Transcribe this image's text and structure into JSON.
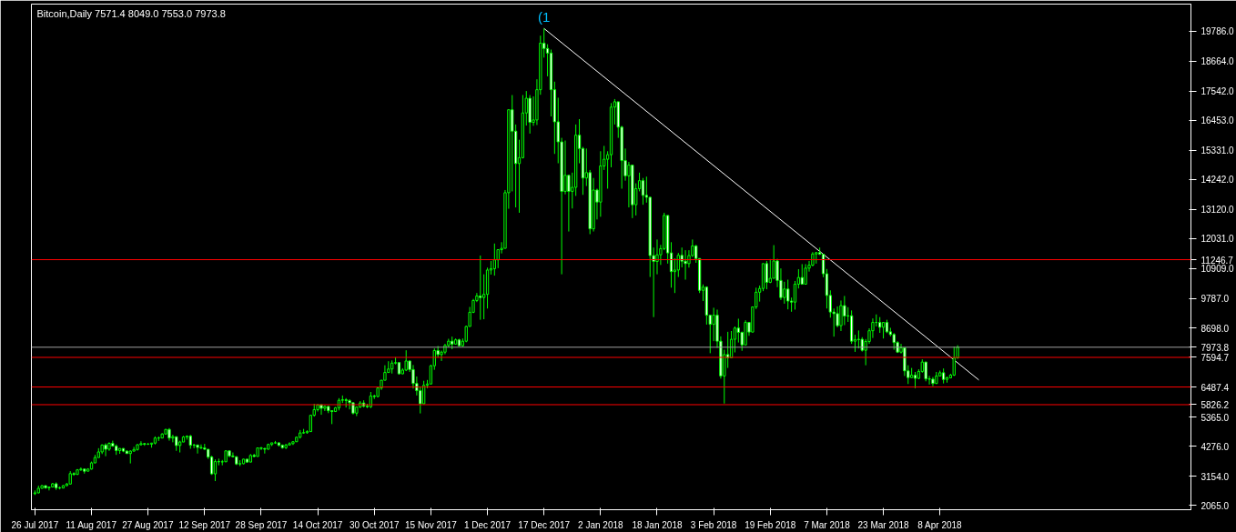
{
  "chart_data": {
    "type": "candlestick",
    "title": "Bitcoin,Daily  7571.4 8049.0 7553.0 7973.8",
    "color": "#00ff00",
    "x": [
      "2017-07-26",
      "2017-07-27",
      "2017-07-28",
      "2017-07-29",
      "2017-07-30",
      "2017-07-31",
      "2017-08-01",
      "2017-08-02",
      "2017-08-03",
      "2017-08-04",
      "2017-08-05",
      "2017-08-06",
      "2017-08-07",
      "2017-08-08",
      "2017-08-09",
      "2017-08-10",
      "2017-08-11",
      "2017-08-12",
      "2017-08-13",
      "2017-08-14",
      "2017-08-15",
      "2017-08-16",
      "2017-08-17",
      "2017-08-18",
      "2017-08-19",
      "2017-08-20",
      "2017-08-21",
      "2017-08-22",
      "2017-08-23",
      "2017-08-24",
      "2017-08-25",
      "2017-08-26",
      "2017-08-27",
      "2017-08-28",
      "2017-08-29",
      "2017-08-30",
      "2017-08-31",
      "2017-09-01",
      "2017-09-02",
      "2017-09-03",
      "2017-09-04",
      "2017-09-05",
      "2017-09-06",
      "2017-09-07",
      "2017-09-08",
      "2017-09-09",
      "2017-09-10",
      "2017-09-11",
      "2017-09-12",
      "2017-09-13",
      "2017-09-14",
      "2017-09-15",
      "2017-09-16",
      "2017-09-17",
      "2017-09-18",
      "2017-09-19",
      "2017-09-20",
      "2017-09-21",
      "2017-09-22",
      "2017-09-23",
      "2017-09-24",
      "2017-09-25",
      "2017-09-26",
      "2017-09-27",
      "2017-09-28",
      "2017-09-29",
      "2017-09-30",
      "2017-10-01",
      "2017-10-02",
      "2017-10-03",
      "2017-10-04",
      "2017-10-05",
      "2017-10-06",
      "2017-10-07",
      "2017-10-08",
      "2017-10-09",
      "2017-10-10",
      "2017-10-11",
      "2017-10-12",
      "2017-10-13",
      "2017-10-14",
      "2017-10-15",
      "2017-10-16",
      "2017-10-17",
      "2017-10-18",
      "2017-10-19",
      "2017-10-20",
      "2017-10-21",
      "2017-10-22",
      "2017-10-23",
      "2017-10-24",
      "2017-10-25",
      "2017-10-26",
      "2017-10-27",
      "2017-10-28",
      "2017-10-29",
      "2017-10-30",
      "2017-10-31",
      "2017-11-01",
      "2017-11-02",
      "2017-11-03",
      "2017-11-04",
      "2017-11-05",
      "2017-11-06",
      "2017-11-07",
      "2017-11-08",
      "2017-11-09",
      "2017-11-10",
      "2017-11-11",
      "2017-11-12",
      "2017-11-13",
      "2017-11-14",
      "2017-11-15",
      "2017-11-16",
      "2017-11-17",
      "2017-11-18",
      "2017-11-19",
      "2017-11-20",
      "2017-11-21",
      "2017-11-22",
      "2017-11-23",
      "2017-11-24",
      "2017-11-25",
      "2017-11-26",
      "2017-11-27",
      "2017-11-28",
      "2017-11-29",
      "2017-11-30",
      "2017-12-01",
      "2017-12-02",
      "2017-12-03",
      "2017-12-04",
      "2017-12-05",
      "2017-12-06",
      "2017-12-07",
      "2017-12-08",
      "2017-12-09",
      "2017-12-10",
      "2017-12-11",
      "2017-12-12",
      "2017-12-13",
      "2017-12-14",
      "2017-12-15",
      "2017-12-16",
      "2017-12-17",
      "2017-12-18",
      "2017-12-19",
      "2017-12-20",
      "2017-12-21",
      "2017-12-22",
      "2017-12-23",
      "2017-12-24",
      "2017-12-25",
      "2017-12-26",
      "2017-12-27",
      "2017-12-28",
      "2017-12-29",
      "2017-12-30",
      "2017-12-31",
      "2018-01-01",
      "2018-01-02",
      "2018-01-03",
      "2018-01-04",
      "2018-01-05",
      "2018-01-06",
      "2018-01-07",
      "2018-01-08",
      "2018-01-09",
      "2018-01-10",
      "2018-01-11",
      "2018-01-12",
      "2018-01-13",
      "2018-01-14",
      "2018-01-15",
      "2018-01-16",
      "2018-01-17",
      "2018-01-18",
      "2018-01-19",
      "2018-01-20",
      "2018-01-21",
      "2018-01-22",
      "2018-01-23",
      "2018-01-24",
      "2018-01-25",
      "2018-01-26",
      "2018-01-27",
      "2018-01-28",
      "2018-01-29",
      "2018-01-30",
      "2018-01-31",
      "2018-02-01",
      "2018-02-02",
      "2018-02-03",
      "2018-02-04",
      "2018-02-05",
      "2018-02-06",
      "2018-02-07",
      "2018-02-08",
      "2018-02-09",
      "2018-02-10",
      "2018-02-11",
      "2018-02-12",
      "2018-02-13",
      "2018-02-14",
      "2018-02-15",
      "2018-02-16",
      "2018-02-17",
      "2018-02-18",
      "2018-02-19",
      "2018-02-20",
      "2018-02-21",
      "2018-02-22",
      "2018-02-23",
      "2018-02-24",
      "2018-02-25",
      "2018-02-26",
      "2018-02-27",
      "2018-02-28",
      "2018-03-01",
      "2018-03-02",
      "2018-03-03",
      "2018-03-04",
      "2018-03-05",
      "2018-03-06",
      "2018-03-07",
      "2018-03-08",
      "2018-03-09",
      "2018-03-10",
      "2018-03-11",
      "2018-03-12",
      "2018-03-13",
      "2018-03-14",
      "2018-03-15",
      "2018-03-16",
      "2018-03-17",
      "2018-03-18",
      "2018-03-19",
      "2018-03-20",
      "2018-03-21",
      "2018-03-22",
      "2018-03-23",
      "2018-03-24",
      "2018-03-25",
      "2018-03-26",
      "2018-03-27",
      "2018-03-28",
      "2018-03-29",
      "2018-03-30",
      "2018-03-31",
      "2018-04-01",
      "2018-04-02",
      "2018-04-03",
      "2018-04-04",
      "2018-04-05",
      "2018-04-06",
      "2018-04-07",
      "2018-04-08",
      "2018-04-09",
      "2018-04-10",
      "2018-04-11",
      "2018-04-12",
      "2018-04-13"
    ],
    "ohlc": [
      [
        2500,
        2620,
        2450,
        2530
      ],
      [
        2530,
        2800,
        2510,
        2700
      ],
      [
        2700,
        2820,
        2690,
        2800
      ],
      [
        2800,
        2810,
        2680,
        2720
      ],
      [
        2720,
        2760,
        2620,
        2750
      ],
      [
        2750,
        2900,
        2740,
        2870
      ],
      [
        2870,
        2920,
        2640,
        2720
      ],
      [
        2720,
        2770,
        2660,
        2710
      ],
      [
        2710,
        2820,
        2700,
        2800
      ],
      [
        2800,
        2900,
        2780,
        2860
      ],
      [
        2860,
        3340,
        2850,
        3250
      ],
      [
        3250,
        3300,
        3170,
        3220
      ],
      [
        3220,
        3420,
        3200,
        3390
      ],
      [
        3390,
        3480,
        3350,
        3420
      ],
      [
        3420,
        3430,
        3250,
        3340
      ],
      [
        3340,
        3450,
        3330,
        3420
      ],
      [
        3420,
        3700,
        3400,
        3650
      ],
      [
        3650,
        3950,
        3640,
        3850
      ],
      [
        3850,
        4200,
        3850,
        4060
      ],
      [
        4060,
        4340,
        3980,
        4320
      ],
      [
        4320,
        4380,
        3900,
        4160
      ],
      [
        4160,
        4420,
        4100,
        4380
      ],
      [
        4380,
        4480,
        4250,
        4280
      ],
      [
        4280,
        4340,
        3950,
        4110
      ],
      [
        4110,
        4200,
        3990,
        4190
      ],
      [
        4190,
        4200,
        4050,
        4090
      ],
      [
        4090,
        4120,
        3990,
        4000
      ],
      [
        4000,
        4120,
        3630,
        4090
      ],
      [
        4090,
        4250,
        4080,
        4150
      ],
      [
        4150,
        4350,
        4110,
        4330
      ],
      [
        4330,
        4460,
        4300,
        4370
      ],
      [
        4370,
        4380,
        4290,
        4350
      ],
      [
        4350,
        4400,
        4320,
        4350
      ],
      [
        4350,
        4400,
        4220,
        4390
      ],
      [
        4390,
        4640,
        4340,
        4580
      ],
      [
        4580,
        4640,
        4470,
        4580
      ],
      [
        4580,
        4760,
        4570,
        4730
      ],
      [
        4730,
        4920,
        4720,
        4900
      ],
      [
        4900,
        4950,
        4480,
        4580
      ],
      [
        4580,
        4700,
        4420,
        4630
      ],
      [
        4630,
        4630,
        4100,
        4300
      ],
      [
        4300,
        4480,
        4040,
        4430
      ],
      [
        4430,
        4660,
        4430,
        4620
      ],
      [
        4620,
        4680,
        4520,
        4650
      ],
      [
        4650,
        4700,
        4180,
        4310
      ],
      [
        4310,
        4360,
        4200,
        4320
      ],
      [
        4320,
        4320,
        4000,
        4230
      ],
      [
        4230,
        4340,
        4160,
        4210
      ],
      [
        4210,
        4360,
        4140,
        4160
      ],
      [
        4160,
        4160,
        3800,
        3870
      ],
      [
        3870,
        3920,
        3200,
        3240
      ],
      [
        3240,
        3780,
        2970,
        3700
      ],
      [
        3700,
        3810,
        3560,
        3690
      ],
      [
        3690,
        3760,
        3560,
        3690
      ],
      [
        3690,
        4120,
        3690,
        4100
      ],
      [
        4100,
        4110,
        3860,
        3910
      ],
      [
        3910,
        4040,
        3880,
        3880
      ],
      [
        3880,
        3900,
        3570,
        3610
      ],
      [
        3610,
        3750,
        3530,
        3620
      ],
      [
        3620,
        3800,
        3600,
        3790
      ],
      [
        3790,
        3790,
        3650,
        3680
      ],
      [
        3680,
        3980,
        3680,
        3930
      ],
      [
        3930,
        3990,
        3860,
        3890
      ],
      [
        3890,
        4220,
        3890,
        4210
      ],
      [
        4210,
        4250,
        4130,
        4190
      ],
      [
        4190,
        4210,
        4000,
        4160
      ],
      [
        4160,
        4370,
        4150,
        4340
      ],
      [
        4340,
        4400,
        4280,
        4400
      ],
      [
        4400,
        4470,
        4360,
        4400
      ],
      [
        4400,
        4420,
        4260,
        4310
      ],
      [
        4310,
        4340,
        4180,
        4220
      ],
      [
        4220,
        4360,
        4170,
        4320
      ],
      [
        4320,
        4420,
        4300,
        4370
      ],
      [
        4370,
        4460,
        4320,
        4440
      ],
      [
        4440,
        4620,
        4440,
        4610
      ],
      [
        4610,
        4880,
        4560,
        4770
      ],
      [
        4770,
        4920,
        4740,
        4780
      ],
      [
        4780,
        4870,
        4740,
        4820
      ],
      [
        4820,
        5440,
        4820,
        5430
      ],
      [
        5430,
        5860,
        5380,
        5640
      ],
      [
        5640,
        5840,
        5570,
        5820
      ],
      [
        5820,
        5840,
        5450,
        5690
      ],
      [
        5690,
        5800,
        5590,
        5760
      ],
      [
        5760,
        5780,
        5510,
        5600
      ],
      [
        5600,
        5600,
        5100,
        5570
      ],
      [
        5570,
        5740,
        5560,
        5710
      ],
      [
        5710,
        6070,
        5610,
        5990
      ],
      [
        5990,
        6170,
        5890,
        6010
      ],
      [
        6010,
        6070,
        5720,
        5980
      ],
      [
        5980,
        6030,
        5650,
        5900
      ],
      [
        5900,
        5900,
        5460,
        5510
      ],
      [
        5510,
        5760,
        5400,
        5740
      ],
      [
        5740,
        5960,
        5700,
        5890
      ],
      [
        5890,
        5990,
        5720,
        5770
      ],
      [
        5770,
        5860,
        5700,
        5750
      ],
      [
        5750,
        6300,
        5700,
        6150
      ],
      [
        6150,
        6200,
        6040,
        6130
      ],
      [
        6130,
        6470,
        6100,
        6450
      ],
      [
        6450,
        6750,
        6380,
        6740
      ],
      [
        6740,
        7300,
        6740,
        7030
      ],
      [
        7030,
        7450,
        7020,
        7160
      ],
      [
        7160,
        7480,
        6990,
        7380
      ],
      [
        7380,
        7600,
        7330,
        7400
      ],
      [
        7400,
        7410,
        6950,
        6980
      ],
      [
        6980,
        7190,
        6970,
        7120
      ],
      [
        7120,
        7860,
        7080,
        7460
      ],
      [
        7460,
        7470,
        7050,
        7140
      ],
      [
        7140,
        7310,
        6430,
        6620
      ],
      [
        6620,
        6880,
        6170,
        6350
      ],
      [
        6350,
        6510,
        5500,
        5860
      ],
      [
        5860,
        6720,
        5850,
        6550
      ],
      [
        6550,
        6750,
        6440,
        6600
      ],
      [
        6600,
        7320,
        6590,
        7280
      ],
      [
        7280,
        7930,
        7130,
        7850
      ],
      [
        7850,
        8020,
        7590,
        7700
      ],
      [
        7700,
        7850,
        7460,
        7790
      ],
      [
        7790,
        8100,
        7710,
        8040
      ],
      [
        8040,
        8290,
        7970,
        8200
      ],
      [
        8200,
        8370,
        7900,
        8090
      ],
      [
        8090,
        8300,
        8070,
        8250
      ],
      [
        8250,
        8290,
        8020,
        8030
      ],
      [
        8030,
        8300,
        8000,
        8200
      ],
      [
        8200,
        8780,
        8160,
        8750
      ],
      [
        8750,
        9480,
        8750,
        9280
      ],
      [
        9280,
        9780,
        9250,
        9720
      ],
      [
        9720,
        10000,
        9660,
        9890
      ],
      [
        9890,
        11400,
        9000,
        9830
      ],
      [
        9830,
        10700,
        9020,
        9950
      ],
      [
        9950,
        10950,
        9420,
        10860
      ],
      [
        10860,
        11200,
        10690,
        10910
      ],
      [
        10910,
        11850,
        10650,
        11240
      ],
      [
        11240,
        11620,
        10930,
        11620
      ],
      [
        11620,
        11900,
        11480,
        11670
      ],
      [
        11670,
        13850,
        11670,
        13750
      ],
      [
        13750,
        16850,
        13150,
        16850
      ],
      [
        16850,
        17400,
        13800,
        16050
      ],
      [
        16050,
        16300,
        13200,
        14840
      ],
      [
        14840,
        15730,
        13000,
        15060
      ],
      [
        15060,
        17400,
        15030,
        16730
      ],
      [
        16730,
        17550,
        16260,
        17280
      ],
      [
        17280,
        17400,
        15960,
        16380
      ],
      [
        16380,
        17350,
        16250,
        16470
      ],
      [
        16470,
        17990,
        16280,
        17600
      ],
      [
        17600,
        19620,
        17410,
        19340
      ],
      [
        19340,
        19890,
        18800,
        19140
      ],
      [
        19140,
        19300,
        18100,
        18970
      ],
      [
        18970,
        19100,
        16600,
        17600
      ],
      [
        17600,
        17900,
        15200,
        16400
      ],
      [
        16400,
        17300,
        14850,
        15650
      ],
      [
        15650,
        15800,
        10700,
        13800
      ],
      [
        13800,
        15700,
        13690,
        14400
      ],
      [
        14400,
        14400,
        12300,
        13800
      ],
      [
        13800,
        14500,
        13160,
        13950
      ],
      [
        13950,
        16300,
        13630,
        15900
      ],
      [
        15900,
        16500,
        14850,
        15400
      ],
      [
        15400,
        15460,
        13670,
        14300
      ],
      [
        14300,
        15400,
        14000,
        14500
      ],
      [
        14500,
        14600,
        12200,
        12400
      ],
      [
        12400,
        14300,
        12300,
        13850
      ],
      [
        13850,
        13900,
        12750,
        13400
      ],
      [
        13400,
        15300,
        12850,
        14750
      ],
      [
        14750,
        15500,
        14600,
        15000
      ],
      [
        15000,
        15300,
        13900,
        15170
      ],
      [
        15170,
        17100,
        14700,
        16950
      ],
      [
        16950,
        17250,
        16300,
        17150
      ],
      [
        17150,
        17150,
        15800,
        16200
      ],
      [
        16200,
        16250,
        13900,
        14950
      ],
      [
        14950,
        15400,
        14200,
        14380
      ],
      [
        14380,
        14900,
        13200,
        14780
      ],
      [
        14780,
        14800,
        12800,
        13300
      ],
      [
        13300,
        14100,
        12900,
        13900
      ],
      [
        13900,
        14500,
        13800,
        14200
      ],
      [
        14200,
        14300,
        13300,
        13650
      ],
      [
        13650,
        14350,
        13380,
        13580
      ],
      [
        13580,
        13600,
        10600,
        11400
      ],
      [
        11400,
        11700,
        9100,
        11180
      ],
      [
        11180,
        12000,
        10700,
        11430
      ],
      [
        11430,
        11800,
        11050,
        11660
      ],
      [
        11660,
        13000,
        11600,
        12900
      ],
      [
        12900,
        12900,
        11100,
        11500
      ],
      [
        11500,
        11900,
        10200,
        10800
      ],
      [
        10800,
        11300,
        10000,
        10860
      ],
      [
        10860,
        11500,
        10600,
        11410
      ],
      [
        11410,
        11700,
        10960,
        11190
      ],
      [
        11190,
        11600,
        10500,
        11100
      ],
      [
        11100,
        11600,
        10950,
        11400
      ],
      [
        11400,
        12000,
        11350,
        11760
      ],
      [
        11760,
        11800,
        11130,
        11290
      ],
      [
        11290,
        11300,
        10000,
        10100
      ],
      [
        10100,
        10320,
        9700,
        10220
      ],
      [
        10220,
        10250,
        8820,
        9170
      ],
      [
        9170,
        9180,
        7750,
        8830
      ],
      [
        8830,
        9450,
        8200,
        9170
      ],
      [
        9170,
        9380,
        7950,
        8200
      ],
      [
        8200,
        8380,
        6800,
        6900
      ],
      [
        6900,
        7880,
        5870,
        7700
      ],
      [
        7700,
        8550,
        7200,
        7580
      ],
      [
        7580,
        8580,
        7580,
        8270
      ],
      [
        8270,
        8750,
        7780,
        8690
      ],
      [
        8690,
        9040,
        8150,
        8530
      ],
      [
        8530,
        8560,
        7840,
        8060
      ],
      [
        8060,
        8980,
        8060,
        8900
      ],
      [
        8900,
        8920,
        8400,
        8540
      ],
      [
        8540,
        9500,
        8540,
        9480
      ],
      [
        9480,
        10200,
        9400,
        10030
      ],
      [
        10030,
        10280,
        9680,
        10170
      ],
      [
        10170,
        11100,
        10070,
        11100
      ],
      [
        11100,
        11200,
        10140,
        10400
      ],
      [
        10400,
        11270,
        10370,
        10550
      ],
      [
        10550,
        11790,
        10550,
        11200
      ],
      [
        11200,
        11280,
        10220,
        10470
      ],
      [
        10470,
        10920,
        9740,
        9830
      ],
      [
        9830,
        10420,
        9600,
        10150
      ],
      [
        10150,
        10500,
        9390,
        9700
      ],
      [
        9700,
        9830,
        9300,
        9660
      ],
      [
        9660,
        10450,
        9380,
        10330
      ],
      [
        10330,
        10890,
        10170,
        10580
      ],
      [
        10580,
        11080,
        10310,
        10330
      ],
      [
        10330,
        11080,
        10330,
        10930
      ],
      [
        10930,
        11200,
        10800,
        11040
      ],
      [
        11040,
        11530,
        11000,
        11460
      ],
      [
        11460,
        11520,
        11100,
        11510
      ],
      [
        11510,
        11700,
        11420,
        11450
      ],
      [
        11450,
        11450,
        10590,
        10720
      ],
      [
        10720,
        10900,
        9420,
        9910
      ],
      [
        9910,
        10100,
        9080,
        9290
      ],
      [
        9290,
        9420,
        8370,
        9230
      ],
      [
        9230,
        9500,
        8720,
        8780
      ],
      [
        8780,
        9720,
        8580,
        9530
      ],
      [
        9530,
        9890,
        8800,
        9140
      ],
      [
        9140,
        9470,
        8920,
        9150
      ],
      [
        9150,
        9350,
        8100,
        8200
      ],
      [
        8200,
        8440,
        7800,
        8260
      ],
      [
        8260,
        8600,
        7930,
        8270
      ],
      [
        8270,
        8350,
        7810,
        7860
      ],
      [
        7860,
        8280,
        7300,
        8190
      ],
      [
        8190,
        8680,
        8100,
        8590
      ],
      [
        8590,
        9050,
        8320,
        8900
      ],
      [
        8900,
        9200,
        8750,
        8900
      ],
      [
        8900,
        9100,
        8510,
        8720
      ],
      [
        8720,
        8900,
        8300,
        8900
      ],
      [
        8900,
        9000,
        8500,
        8550
      ],
      [
        8550,
        8700,
        8380,
        8450
      ],
      [
        8450,
        8500,
        7880,
        8150
      ],
      [
        8150,
        8200,
        7760,
        7790
      ],
      [
        7790,
        8100,
        7740,
        7950
      ],
      [
        7950,
        7960,
        6900,
        7090
      ],
      [
        7090,
        7300,
        6600,
        6840
      ],
      [
        6840,
        7200,
        6820,
        6930
      ],
      [
        6930,
        7050,
        6440,
        6810
      ],
      [
        6810,
        7150,
        6780,
        7070
      ],
      [
        7070,
        7520,
        7020,
        7420
      ],
      [
        7420,
        7430,
        6700,
        6790
      ],
      [
        6790,
        6900,
        6580,
        6780
      ],
      [
        6780,
        6860,
        6520,
        6620
      ],
      [
        6620,
        7050,
        6600,
        6900
      ],
      [
        6900,
        7100,
        6880,
        7020
      ],
      [
        7020,
        7180,
        6620,
        6770
      ],
      [
        6770,
        6880,
        6650,
        6830
      ],
      [
        6830,
        6980,
        6810,
        6930
      ],
      [
        6930,
        8000,
        6900,
        7571.4
      ],
      [
        7571.4,
        8049.0,
        7553.0,
        7973.8
      ]
    ],
    "series": [
      {
        "type": "line",
        "x": [
          "2017-12-17",
          "2018-04-19"
        ],
        "values": [
          19890,
          6750
        ],
        "color": "#ffffff"
      }
    ],
    "annotations": [
      "(1"
    ],
    "ref_lines": [
      {
        "axis": "y",
        "value": 11246.7,
        "label": "11246.7",
        "color": "#ff0000"
      },
      {
        "axis": "y",
        "value": 7973.8,
        "label": "7973.8",
        "color": "#a0a0a0"
      },
      {
        "axis": "y",
        "value": 7594.7,
        "label": "7594.7",
        "color": "#ff0000"
      },
      {
        "axis": "y",
        "value": 6487.4,
        "label": "6487.4",
        "color": "#ff0000"
      },
      {
        "axis": "y",
        "value": 5826.2,
        "label": "5826.2",
        "color": "#ff0000"
      }
    ],
    "xlim": [
      "2017-07-25",
      "2018-06-18"
    ],
    "xticks": [
      {
        "value": "2017-07-26",
        "label": "26 Jul 2017"
      },
      {
        "value": "2017-08-11",
        "label": "11 Aug 2017"
      },
      {
        "value": "2017-08-27",
        "label": "27 Aug 2017"
      },
      {
        "value": "2017-09-12",
        "label": "12 Sep 2017"
      },
      {
        "value": "2017-09-28",
        "label": "28 Sep 2017"
      },
      {
        "value": "2017-10-14",
        "label": "14 Oct 2017"
      },
      {
        "value": "2017-10-30",
        "label": "30 Oct 2017"
      },
      {
        "value": "2017-11-15",
        "label": "15 Nov 2017"
      },
      {
        "value": "2017-12-01",
        "label": "1 Dec 2017"
      },
      {
        "value": "2017-12-17",
        "label": "17 Dec 2017"
      },
      {
        "value": "2018-01-02",
        "label": "2 Jan 2018"
      },
      {
        "value": "2018-01-18",
        "label": "18 Jan 2018"
      },
      {
        "value": "2018-02-03",
        "label": "3 Feb 2018"
      },
      {
        "value": "2018-02-19",
        "label": "19 Feb 2018"
      },
      {
        "value": "2018-03-07",
        "label": "7 Mar 2018"
      },
      {
        "value": "2018-03-23",
        "label": "23 Mar 2018"
      },
      {
        "value": "2018-04-08",
        "label": "8 Apr 2018"
      }
    ],
    "ylim": [
      1900,
      20800
    ],
    "yticks": [
      {
        "value": 2065,
        "label": "2065.0"
      },
      {
        "value": 3154,
        "label": "3154.0"
      },
      {
        "value": 4276,
        "label": "4276.0"
      },
      {
        "value": 5365,
        "label": "5365.0"
      },
      {
        "value": 8698,
        "label": "8698.0"
      },
      {
        "value": 9787,
        "label": "9787.0"
      },
      {
        "value": 10909,
        "label": "10909.0"
      },
      {
        "value": 12031,
        "label": "12031.0"
      },
      {
        "value": 13120,
        "label": "13120.0"
      },
      {
        "value": 14242,
        "label": "14242.0"
      },
      {
        "value": 15331,
        "label": "15331.0"
      },
      {
        "value": 16453,
        "label": "16453.0"
      },
      {
        "value": 17542,
        "label": "17542.0"
      },
      {
        "value": 18664,
        "label": "18664.0"
      },
      {
        "value": 19786,
        "label": "19786.0"
      }
    ],
    "grid": false
  }
}
